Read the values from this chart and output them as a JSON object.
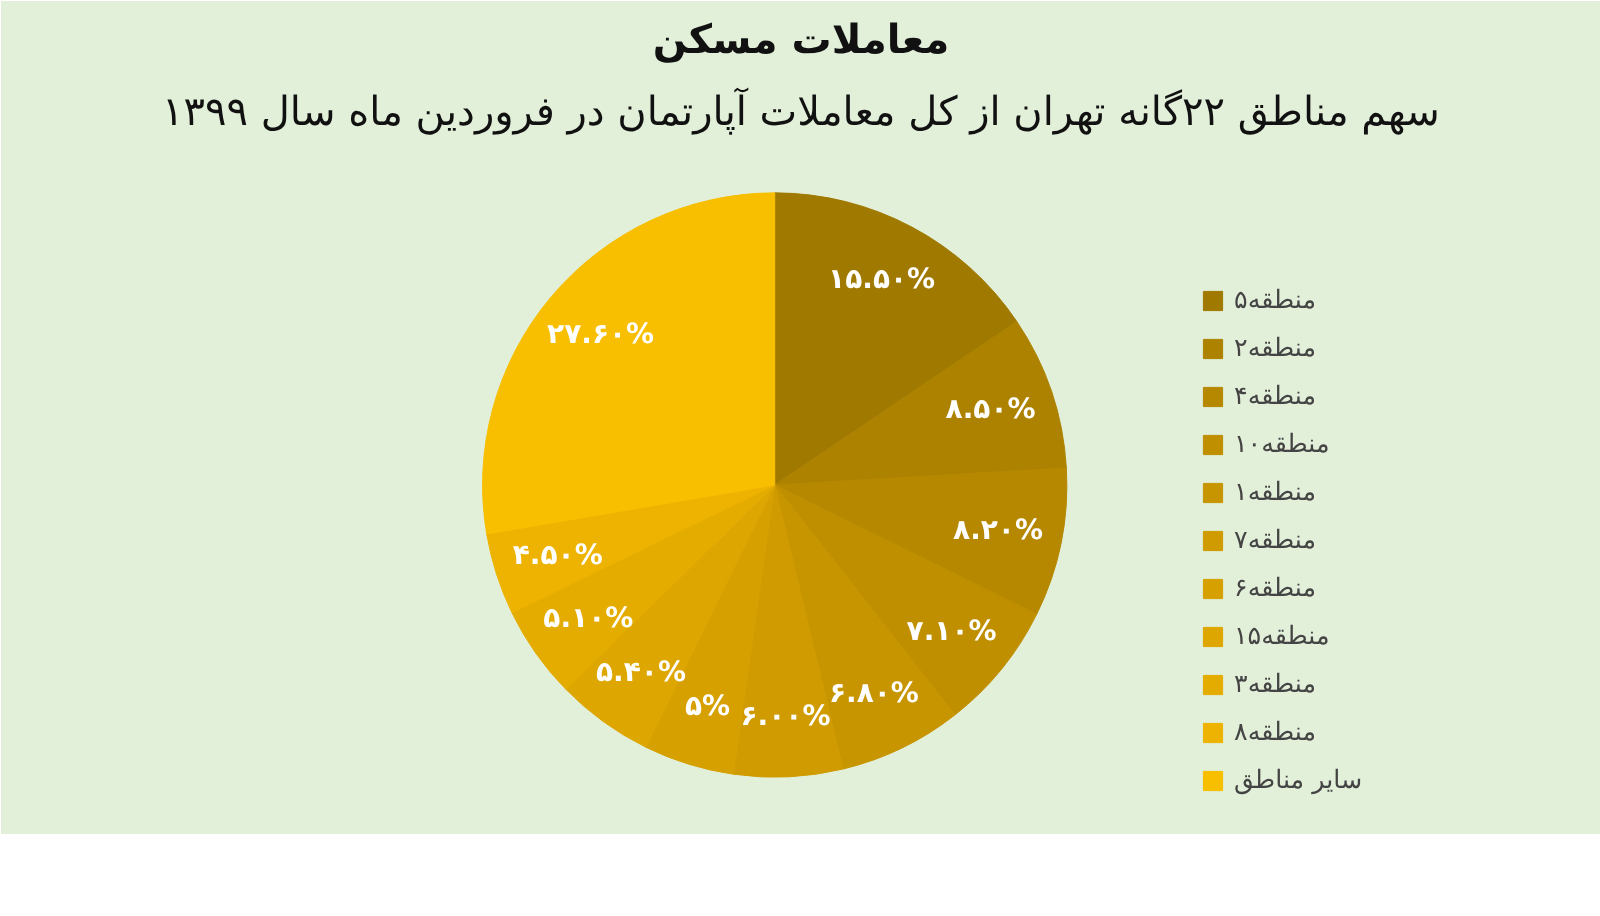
{
  "chart_data": {
    "type": "pie",
    "title": "معاملات مسکن",
    "subtitle": "سهم مناطق ۲۲گانه تهران از کل معاملات آپارتمان در فروردین ماه سال ۱۳۹۹",
    "categories": [
      "منطقه۵",
      "منطقه۲",
      "منطقه۴",
      "منطقه۱۰",
      "منطقه۱",
      "منطقه۷",
      "منطقه۶",
      "منطقه۱۵",
      "منطقه۳",
      "منطقه۸",
      "سایر مناطق"
    ],
    "values": [
      15.5,
      8.5,
      8.2,
      7.1,
      6.8,
      6.0,
      5,
      5.4,
      5.1,
      4.5,
      27.6
    ],
    "value_labels": [
      "۱۵.۵۰%",
      "۸.۵۰%",
      "۸.۲۰%",
      "۷.۱۰%",
      "۶.۸۰%",
      "۶.۰۰%",
      "۵%",
      "۵.۴۰%",
      "۵.۱۰%",
      "۴.۵۰%",
      "۲۷.۶۰%"
    ],
    "colors": [
      "#a07a00",
      "#ad8200",
      "#b68800",
      "#bf8f00",
      "#c79500",
      "#cf9b00",
      "#d6a000",
      "#dea600",
      "#e5ac00",
      "#eeb300",
      "#f8be00"
    ],
    "legend": "right"
  }
}
